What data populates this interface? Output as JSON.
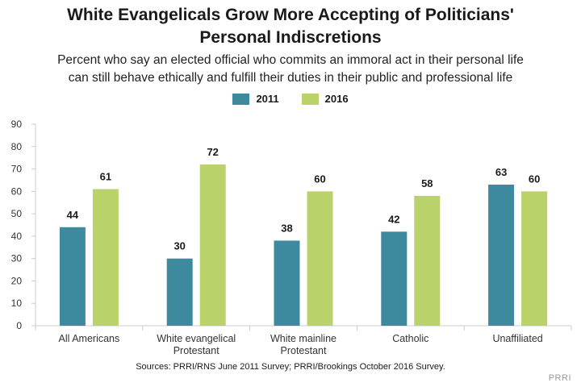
{
  "header": {
    "title_line1": "White Evangelicals Grow More Accepting of Politicians'",
    "title_line2": "Personal Indiscretions",
    "subtitle_line1": "Percent who say an elected official who commits an immoral act in their personal life",
    "subtitle_line2": "can still behave ethically and fulfill their duties in their public and professional life"
  },
  "footer": {
    "source": "Sources: PRRI/RNS June 2011 Survey; PRRI/Brookings October 2016 Survey.",
    "credit": "PRRI"
  },
  "colors": {
    "series_2011": "#3d8a9e",
    "series_2016": "#b9d36a",
    "axis": "#cccccc"
  },
  "chart_data": {
    "type": "bar",
    "categories": [
      [
        "All Americans"
      ],
      [
        "White evangelical",
        "Protestant"
      ],
      [
        "White mainline",
        "Protestant"
      ],
      [
        "Catholic"
      ],
      [
        "Unaffiliated"
      ]
    ],
    "series": [
      {
        "name": "2011",
        "values": [
          44,
          30,
          38,
          42,
          63
        ]
      },
      {
        "name": "2016",
        "values": [
          61,
          72,
          60,
          58,
          60
        ]
      }
    ],
    "ylim": [
      0,
      90
    ],
    "yticks": [
      0,
      10,
      20,
      30,
      40,
      50,
      60,
      70,
      80,
      90
    ],
    "legend": "top-center",
    "grid": false
  }
}
